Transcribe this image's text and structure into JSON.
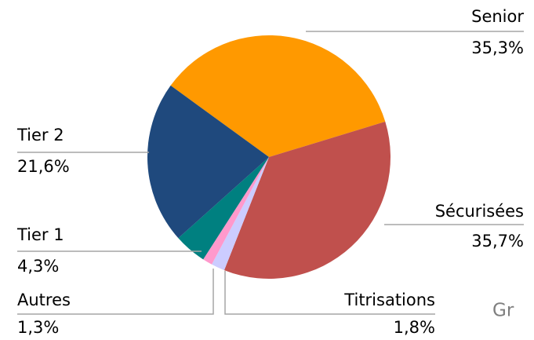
{
  "chart_data": {
    "type": "pie",
    "categories": [
      "Senior",
      "Sécurisées",
      "Titrisations",
      "Autres",
      "Tier 1",
      "Tier 2"
    ],
    "values": [
      35.3,
      35.7,
      1.8,
      1.3,
      4.3,
      21.6
    ],
    "value_labels": [
      "35,3%",
      "35,7%",
      "1,8%",
      "1,3%",
      "4,3%",
      "21,6%"
    ],
    "colors": [
      "#ff9900",
      "#c0504d",
      "#ccccff",
      "#ff99cc",
      "#008080",
      "#1f497d"
    ],
    "annotation": "Gr"
  }
}
